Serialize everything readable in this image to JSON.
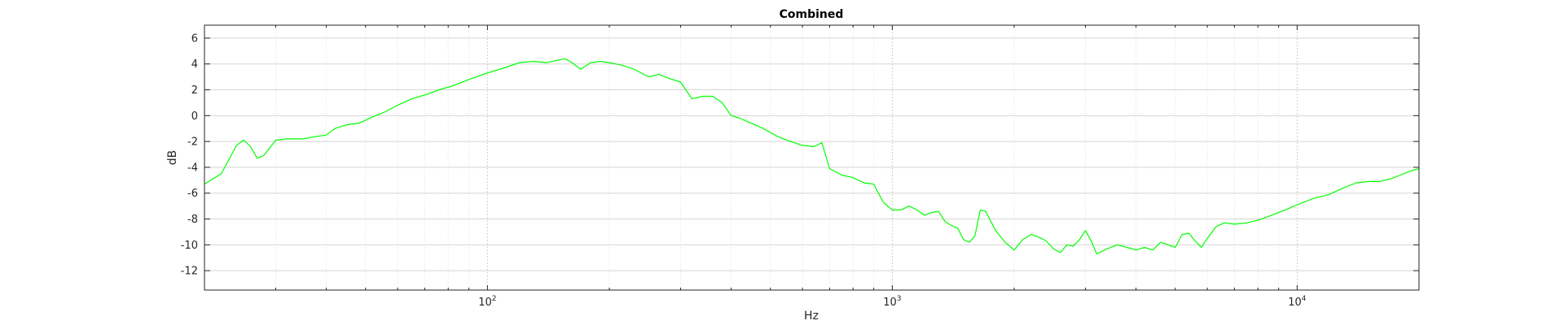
{
  "chart_data": {
    "type": "line",
    "title": "Combined",
    "xlabel": "Hz",
    "ylabel": "dB",
    "x_scale": "log",
    "xlim": [
      20,
      20000
    ],
    "ylim": [
      -13.5,
      7
    ],
    "yticks": [
      6,
      4,
      2,
      0,
      -2,
      -4,
      -6,
      -8,
      -10,
      -12
    ],
    "xticks": [
      100,
      1000,
      10000
    ],
    "xtick_labels": [
      {
        "base": "10",
        "exp": "2"
      },
      {
        "base": "10",
        "exp": "3"
      },
      {
        "base": "10",
        "exp": "4"
      }
    ],
    "grid": true,
    "minor_grid": true,
    "legend": "none",
    "series": [
      {
        "color": "#00ff00",
        "x": [
          20,
          22,
          24,
          25,
          26,
          27,
          28,
          30,
          32,
          35,
          38,
          40,
          42,
          45,
          48,
          52,
          56,
          60,
          65,
          70,
          76,
          82,
          90,
          100,
          110,
          120,
          130,
          140,
          150,
          155,
          160,
          170,
          180,
          190,
          200,
          215,
          230,
          250,
          265,
          280,
          300,
          320,
          340,
          360,
          380,
          400,
          420,
          450,
          480,
          520,
          560,
          600,
          640,
          670,
          700,
          750,
          800,
          850,
          900,
          950,
          1000,
          1050,
          1100,
          1150,
          1200,
          1250,
          1300,
          1350,
          1400,
          1450,
          1500,
          1550,
          1600,
          1650,
          1700,
          1800,
          1900,
          2000,
          2100,
          2200,
          2300,
          2400,
          2500,
          2600,
          2700,
          2800,
          2900,
          3000,
          3100,
          3200,
          3400,
          3600,
          3800,
          4000,
          4200,
          4400,
          4600,
          4800,
          5000,
          5200,
          5400,
          5600,
          5800,
          6000,
          6300,
          6600,
          7000,
          7500,
          8000,
          8500,
          9000,
          9500,
          10000,
          11000,
          12000,
          13000,
          14000,
          15000,
          16000,
          17000,
          18000,
          19000,
          20000
        ],
        "y": [
          -5.3,
          -4.5,
          -2.3,
          -1.9,
          -2.4,
          -3.3,
          -3.1,
          -1.9,
          -1.8,
          -1.8,
          -1.6,
          -1.5,
          -1.0,
          -0.7,
          -0.6,
          -0.1,
          0.3,
          0.8,
          1.3,
          1.6,
          2.0,
          2.3,
          2.8,
          3.3,
          3.7,
          4.1,
          4.2,
          4.1,
          4.3,
          4.4,
          4.2,
          3.6,
          4.1,
          4.2,
          4.1,
          3.9,
          3.6,
          3.0,
          3.2,
          2.9,
          2.6,
          1.3,
          1.5,
          1.5,
          1.0,
          0.0,
          -0.2,
          -0.6,
          -1.0,
          -1.6,
          -2.0,
          -2.3,
          -2.4,
          -2.1,
          -4.1,
          -4.6,
          -4.8,
          -5.2,
          -5.3,
          -6.7,
          -7.3,
          -7.3,
          -7.0,
          -7.3,
          -7.7,
          -7.5,
          -7.4,
          -8.2,
          -8.5,
          -8.7,
          -9.6,
          -9.8,
          -9.3,
          -7.3,
          -7.4,
          -8.9,
          -9.8,
          -10.4,
          -9.6,
          -9.2,
          -9.4,
          -9.7,
          -10.3,
          -10.6,
          -10.0,
          -10.1,
          -9.6,
          -8.9,
          -9.7,
          -10.7,
          -10.3,
          -10.0,
          -10.2,
          -10.4,
          -10.2,
          -10.4,
          -9.8,
          -10.0,
          -10.2,
          -9.2,
          -9.1,
          -9.7,
          -10.2,
          -9.5,
          -8.6,
          -8.3,
          -8.4,
          -8.3,
          -8.1,
          -7.8,
          -7.5,
          -7.2,
          -6.9,
          -6.4,
          -6.1,
          -5.6,
          -5.2,
          -5.1,
          -5.1,
          -4.9,
          -4.6,
          -4.3,
          -4.1
        ]
      }
    ]
  }
}
